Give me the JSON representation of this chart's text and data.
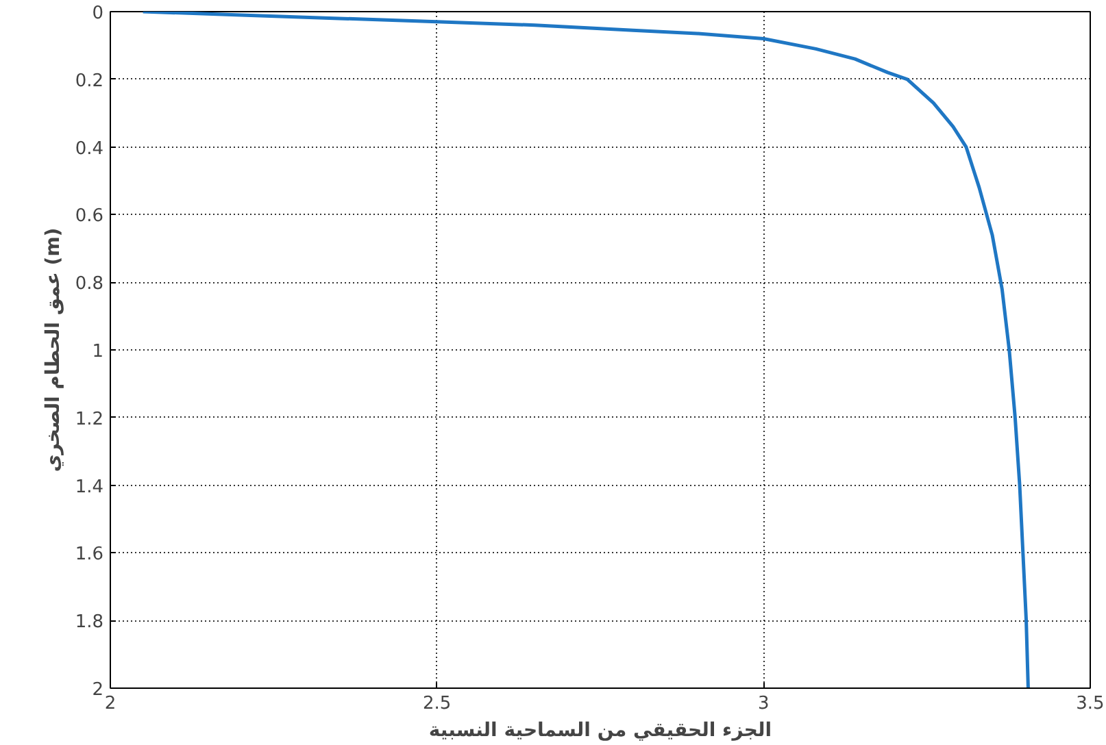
{
  "chart_data": {
    "type": "line",
    "xlabel": "الجزء الحقيقي من السماحية النسبية",
    "ylabel": "عمق الحطام الصخري (m)",
    "x": [
      2.05,
      2.2,
      2.35,
      2.5,
      2.65,
      2.8,
      2.9,
      3.0,
      3.08,
      3.14,
      3.19,
      3.22,
      3.26,
      3.29,
      3.31,
      3.33,
      3.35,
      3.365,
      3.376,
      3.385,
      3.392,
      3.397,
      3.402,
      3.405
    ],
    "series": [
      {
        "color": "#1f77c4",
        "values": [
          0,
          0.01,
          0.02,
          0.03,
          0.04,
          0.055,
          0.065,
          0.08,
          0.11,
          0.14,
          0.18,
          0.2,
          0.27,
          0.34,
          0.4,
          0.52,
          0.66,
          0.82,
          1.0,
          1.2,
          1.4,
          1.6,
          1.8,
          2.0
        ]
      }
    ],
    "xlim": [
      2,
      3.5
    ],
    "xticks": [
      2,
      2.5,
      3,
      3.5
    ],
    "ylim": [
      2,
      0
    ],
    "yticks": [
      0,
      0.2,
      0.4,
      0.6,
      0.8,
      1,
      1.2,
      1.4,
      1.6,
      1.8,
      2
    ],
    "grid": true,
    "marker": "none",
    "line_style": "solid"
  }
}
